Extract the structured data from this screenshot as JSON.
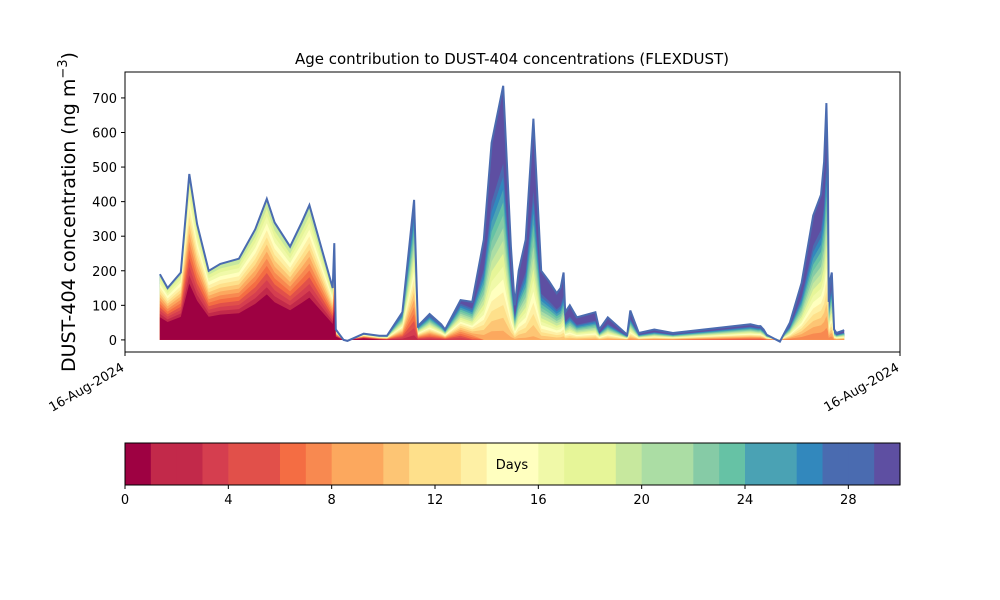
{
  "chart_data": {
    "type": "area",
    "stacked": true,
    "title": "Age contribution to DUST-404 concentrations (FLEXDUST)",
    "ylabel": "DUST-404 concentration (ng m",
    "ylabel_sup": "−3",
    "ylabel_close": ")",
    "xlabel": "",
    "ylim": [
      -35,
      775
    ],
    "yticks": [
      0,
      100,
      200,
      300,
      400,
      500,
      600,
      700
    ],
    "xticks": [
      {
        "pos": 0,
        "label": "16-Aug-2024"
      },
      {
        "pos": 1,
        "label": "16-Aug-2024"
      }
    ],
    "grid": false,
    "series_by": "age (days)",
    "total_concentration": {
      "x_fraction": [
        0.045,
        0.055,
        0.072,
        0.083,
        0.093,
        0.108,
        0.123,
        0.147,
        0.168,
        0.183,
        0.193,
        0.213,
        0.228,
        0.238,
        0.268,
        0.27,
        0.272,
        0.282,
        0.287,
        0.308,
        0.328,
        0.338,
        0.358,
        0.373,
        0.378,
        0.393,
        0.408,
        0.413,
        0.433,
        0.448,
        0.463,
        0.473,
        0.488,
        0.498,
        0.503,
        0.508,
        0.517,
        0.527,
        0.537,
        0.547,
        0.557,
        0.562,
        0.566,
        0.568,
        0.574,
        0.583,
        0.607,
        0.612,
        0.623,
        0.648,
        0.652,
        0.663,
        0.683,
        0.707,
        0.807,
        0.817,
        0.82,
        0.822,
        0.824,
        0.828,
        0.845,
        0.858,
        0.873,
        0.888,
        0.898,
        0.902,
        0.905,
        0.907,
        0.908,
        0.91,
        0.912,
        0.915,
        0.918,
        0.928
      ],
      "values": [
        190,
        150,
        195,
        480,
        335,
        200,
        220,
        235,
        320,
        408,
        340,
        270,
        340,
        390,
        150,
        280,
        30,
        0,
        -3,
        18,
        12,
        12,
        80,
        405,
        40,
        75,
        45,
        30,
        115,
        110,
        290,
        570,
        735,
        270,
        100,
        200,
        290,
        640,
        200,
        170,
        135,
        150,
        195,
        80,
        100,
        65,
        80,
        30,
        65,
        15,
        85,
        20,
        30,
        20,
        45,
        40,
        40,
        35,
        30,
        15,
        -5,
        50,
        165,
        360,
        420,
        515,
        685,
        490,
        110,
        175,
        195,
        30,
        20,
        28
      ]
    },
    "colorbar": {
      "label": "Days",
      "min": 0,
      "max": 30,
      "ticks": [
        0,
        4,
        8,
        12,
        16,
        20,
        24,
        28
      ],
      "bin_width": 1,
      "colors": [
        "#9e0142",
        "#c2294a",
        "#d53e4f",
        "#e1504a",
        "#f46d43",
        "#f88950",
        "#fca85e",
        "#fdc574",
        "#fee08b",
        "#fef0a5",
        "#ffffbf",
        "#f0f9a8",
        "#e6f598",
        "#c7e89e",
        "#abdda4",
        "#86cba6",
        "#66c2a5",
        "#4aa2b4",
        "#3288bd",
        "#4a6bb0",
        "#5e4fa2"
      ]
    }
  }
}
